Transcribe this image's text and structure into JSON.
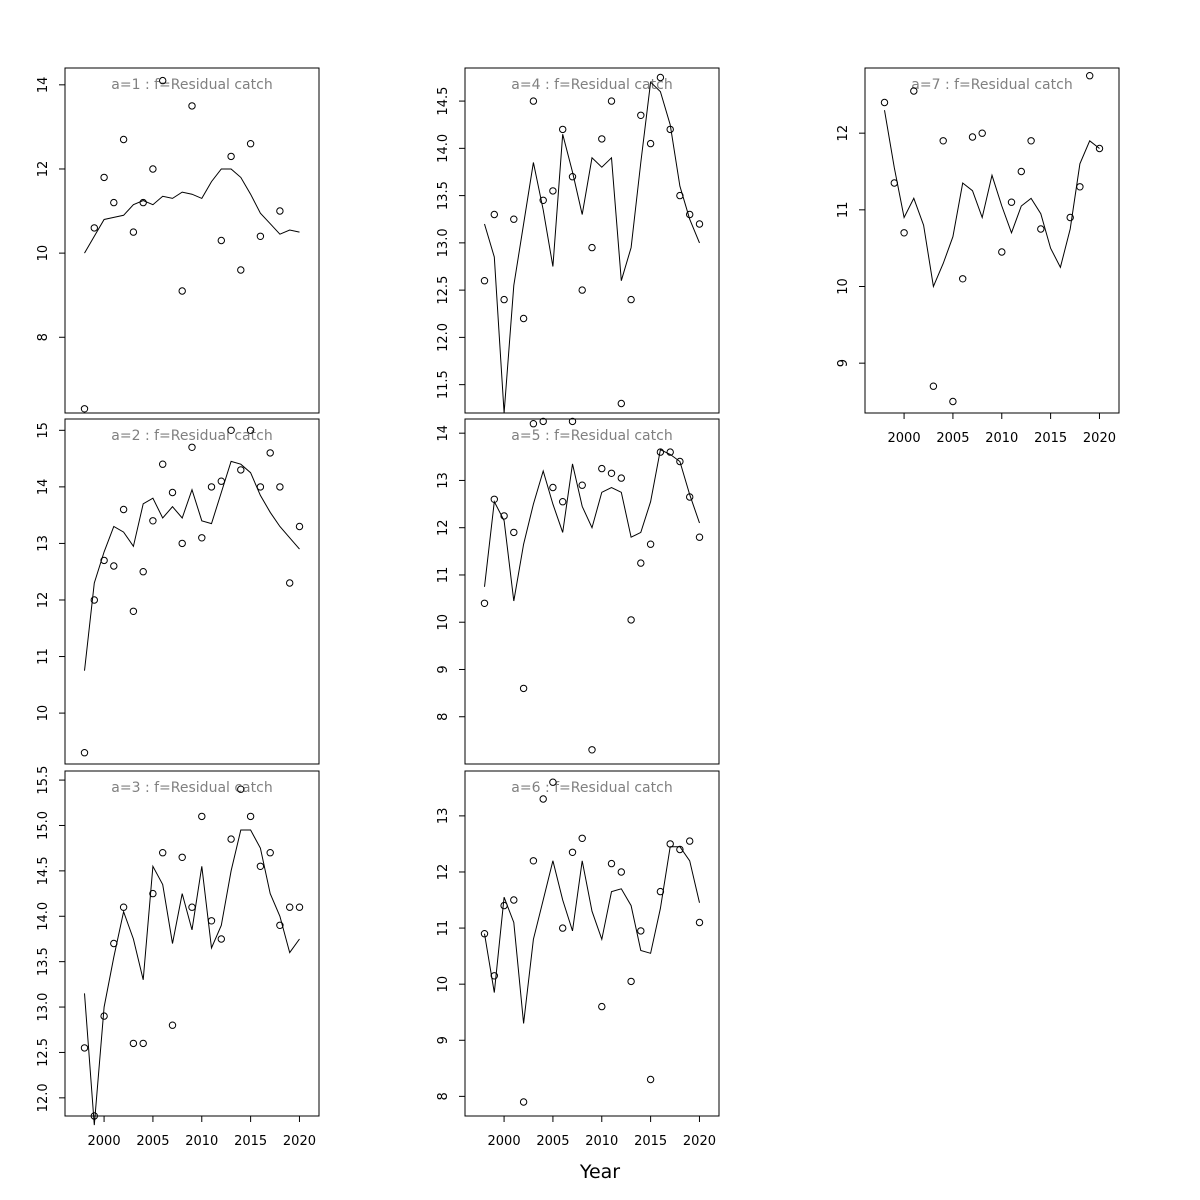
{
  "chart_data": {
    "type": "scatter",
    "xlabel": "Year",
    "x_axis": {
      "ticks": [
        2000,
        2005,
        2010,
        2015,
        2020
      ],
      "range": [
        1996,
        2022
      ]
    },
    "years": [
      1998,
      1999,
      2000,
      2001,
      2002,
      2003,
      2004,
      2005,
      2006,
      2007,
      2008,
      2009,
      2010,
      2011,
      2012,
      2013,
      2014,
      2015,
      2016,
      2017,
      2018,
      2019,
      2020
    ],
    "panels": [
      {
        "id": "a1",
        "title": "a=1  :  f=Residual catch",
        "ylim": [
          6.2,
          14.4
        ],
        "yticks": [
          8,
          10,
          12,
          14
        ],
        "yticklabels": [
          "8",
          "10",
          "12",
          "14"
        ],
        "points": [
          6.3,
          10.6,
          11.8,
          11.2,
          12.7,
          10.5,
          11.2,
          12.0,
          14.1,
          null,
          9.1,
          13.5,
          null,
          null,
          10.3,
          12.3,
          9.6,
          12.6,
          10.4,
          null,
          11.0,
          null,
          null
        ],
        "fit": [
          10.0,
          10.4,
          10.8,
          10.85,
          10.9,
          11.15,
          11.25,
          11.15,
          11.35,
          11.3,
          11.45,
          11.4,
          11.3,
          11.7,
          12.0,
          12.0,
          11.8,
          11.4,
          10.95,
          10.7,
          10.45,
          10.55,
          10.5
        ]
      },
      {
        "id": "a2",
        "title": "a=2  :  f=Residual catch",
        "ylim": [
          9.1,
          15.2
        ],
        "yticks": [
          10,
          11,
          12,
          13,
          14,
          15
        ],
        "yticklabels": [
          "10",
          "11",
          "12",
          "13",
          "14",
          "15"
        ],
        "points": [
          9.3,
          12.0,
          12.7,
          12.6,
          13.6,
          11.8,
          12.5,
          13.4,
          14.4,
          13.9,
          13.0,
          14.7,
          13.1,
          14.0,
          14.1,
          15.0,
          14.3,
          15.0,
          14.0,
          14.6,
          14.0,
          12.3,
          13.3
        ],
        "fit": [
          10.75,
          12.3,
          12.85,
          13.3,
          13.2,
          12.95,
          13.7,
          13.8,
          13.45,
          13.65,
          13.45,
          13.95,
          13.4,
          13.35,
          13.9,
          14.45,
          14.4,
          14.25,
          13.85,
          13.55,
          13.3,
          13.1,
          12.9
        ]
      },
      {
        "id": "a3",
        "title": "a=3  :  f=Residual catch",
        "ylim": [
          11.8,
          15.6
        ],
        "yticks": [
          12.0,
          12.5,
          13.0,
          13.5,
          14.0,
          14.5,
          15.0,
          15.5
        ],
        "yticklabels": [
          "12.0",
          "12.5",
          "13.0",
          "13.5",
          "14.0",
          "14.5",
          "15.0",
          "15.5"
        ],
        "points": [
          12.55,
          11.8,
          12.9,
          13.7,
          14.1,
          12.6,
          12.6,
          14.25,
          14.7,
          12.8,
          14.65,
          14.1,
          15.1,
          13.95,
          13.75,
          14.85,
          15.4,
          15.1,
          14.55,
          14.7,
          13.9,
          14.1,
          14.1
        ],
        "fit": [
          13.15,
          11.7,
          13.0,
          13.55,
          14.05,
          13.75,
          13.3,
          14.55,
          14.35,
          13.7,
          14.25,
          13.85,
          14.55,
          13.65,
          13.9,
          14.5,
          14.95,
          14.95,
          14.75,
          14.25,
          14.0,
          13.6,
          13.75
        ]
      },
      {
        "id": "a4",
        "title": "a=4  :  f=Residual catch",
        "ylim": [
          11.2,
          14.85
        ],
        "yticks": [
          11.5,
          12.0,
          12.5,
          13.0,
          13.5,
          14.0,
          14.5
        ],
        "yticklabels": [
          "11.5",
          "12.0",
          "12.5",
          "13.0",
          "13.5",
          "14.0",
          "14.5"
        ],
        "points": [
          12.6,
          13.3,
          12.4,
          13.25,
          12.2,
          14.5,
          13.45,
          13.55,
          14.2,
          13.7,
          12.5,
          12.95,
          14.1,
          14.5,
          11.3,
          12.4,
          14.35,
          14.05,
          14.75,
          14.2,
          13.5,
          13.3,
          13.2
        ],
        "fit": [
          13.2,
          12.85,
          11.2,
          12.55,
          13.2,
          13.85,
          13.35,
          12.75,
          14.15,
          13.75,
          13.3,
          13.9,
          13.8,
          13.9,
          12.6,
          12.95,
          13.85,
          14.7,
          14.6,
          14.25,
          13.6,
          13.25,
          13.0
        ]
      },
      {
        "id": "a5",
        "title": "a=5  :  f=Residual catch",
        "ylim": [
          7.0,
          14.3
        ],
        "yticks": [
          8,
          9,
          10,
          11,
          12,
          13,
          14
        ],
        "yticklabels": [
          "8",
          "9",
          "10",
          "11",
          "12",
          "13",
          "14"
        ],
        "points": [
          10.4,
          12.6,
          12.25,
          11.9,
          8.6,
          14.2,
          14.25,
          12.85,
          12.55,
          14.25,
          12.9,
          7.3,
          13.25,
          13.15,
          13.05,
          10.05,
          11.25,
          11.65,
          13.6,
          13.6,
          13.4,
          12.65,
          11.8
        ],
        "fit": [
          10.75,
          12.55,
          12.15,
          10.45,
          11.65,
          12.5,
          13.2,
          12.5,
          11.9,
          13.35,
          12.45,
          12.0,
          12.75,
          12.85,
          12.75,
          11.8,
          11.9,
          12.55,
          13.65,
          13.55,
          13.4,
          12.7,
          12.1
        ]
      },
      {
        "id": "a6",
        "title": "a=6  :  f=Residual catch",
        "ylim": [
          7.65,
          13.8
        ],
        "yticks": [
          8,
          9,
          10,
          11,
          12,
          13
        ],
        "yticklabels": [
          "8",
          "9",
          "10",
          "11",
          "12",
          "13"
        ],
        "points": [
          10.9,
          10.15,
          11.4,
          11.5,
          7.9,
          12.2,
          13.3,
          13.6,
          11.0,
          12.35,
          12.6,
          null,
          9.6,
          12.15,
          12.0,
          10.05,
          10.95,
          8.3,
          11.65,
          12.5,
          12.4,
          12.55,
          11.1
        ],
        "fit": [
          10.9,
          9.85,
          11.55,
          11.1,
          9.3,
          10.8,
          11.5,
          12.2,
          11.5,
          10.95,
          12.2,
          11.3,
          10.8,
          11.65,
          11.7,
          11.4,
          10.6,
          10.55,
          11.35,
          12.45,
          12.45,
          12.2,
          11.45
        ]
      },
      {
        "id": "a7",
        "title": "a=7  :  f=Residual catch",
        "ylim": [
          8.35,
          12.85
        ],
        "yticks": [
          9,
          10,
          11,
          12
        ],
        "yticklabels": [
          "9",
          "10",
          "11",
          "12"
        ],
        "points": [
          12.4,
          11.35,
          10.7,
          12.55,
          null,
          8.7,
          11.9,
          8.5,
          10.1,
          11.95,
          12.0,
          null,
          10.45,
          11.1,
          11.5,
          11.9,
          10.75,
          null,
          null,
          10.9,
          11.3,
          12.75,
          11.8
        ],
        "fit": [
          12.3,
          11.55,
          10.9,
          11.15,
          10.8,
          10.0,
          10.3,
          10.65,
          11.35,
          11.25,
          10.9,
          11.45,
          11.05,
          10.7,
          11.05,
          11.15,
          10.95,
          10.5,
          10.25,
          10.75,
          11.6,
          11.9,
          11.8
        ]
      }
    ]
  }
}
